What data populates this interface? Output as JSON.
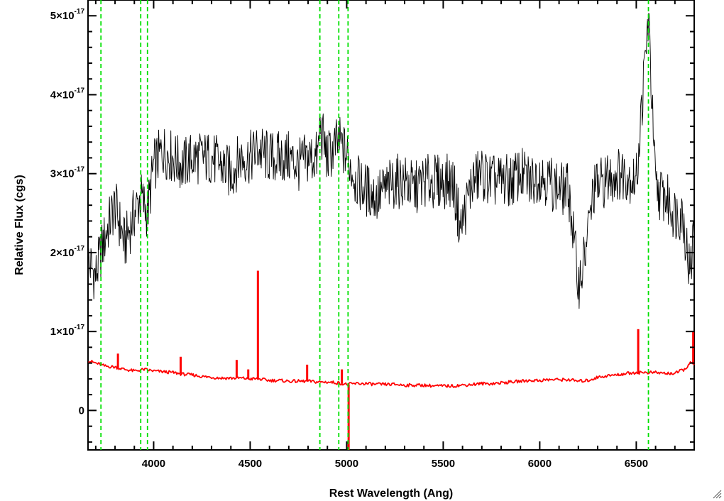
{
  "chart_data": {
    "type": "line",
    "xlabel": "Rest Wavelength (Ang)",
    "ylabel": "Relative Flux (cgs)",
    "xlim": [
      3660,
      6800
    ],
    "ylim": [
      -5e-18,
      5.2e-17
    ],
    "x_ticks": [
      {
        "value": 4000,
        "label": "4000"
      },
      {
        "value": 4500,
        "label": "4500"
      },
      {
        "value": 5000,
        "label": "5000"
      },
      {
        "value": 5500,
        "label": "5500"
      },
      {
        "value": 6000,
        "label": "6000"
      },
      {
        "value": 6500,
        "label": "6500"
      }
    ],
    "y_ticks": [
      {
        "value": 0,
        "mantissa": "0",
        "exponent": ""
      },
      {
        "value": 1e-17,
        "mantissa": "1×10",
        "exponent": "-17"
      },
      {
        "value": 2e-17,
        "mantissa": "2×10",
        "exponent": "-17"
      },
      {
        "value": 3e-17,
        "mantissa": "3×10",
        "exponent": "-17"
      },
      {
        "value": 4e-17,
        "mantissa": "4×10",
        "exponent": "-17"
      },
      {
        "value": 5e-17,
        "mantissa": "5×10",
        "exponent": "-17"
      }
    ],
    "vertical_lines": [
      3727,
      3933,
      3968,
      4861,
      4959,
      5007,
      6563
    ],
    "series": [
      {
        "color": "#000000",
        "x": [
          3660,
          3700,
          3727,
          3760,
          3800,
          3850,
          3900,
          3933,
          3968,
          4000,
          4050,
          4100,
          4150,
          4200,
          4250,
          4300,
          4350,
          4400,
          4450,
          4500,
          4540,
          4600,
          4650,
          4700,
          4750,
          4800,
          4850,
          4861,
          4900,
          4959,
          5007,
          5050,
          5100,
          5150,
          5200,
          5250,
          5300,
          5350,
          5400,
          5450,
          5500,
          5550,
          5590,
          5650,
          5700,
          5750,
          5800,
          5850,
          5900,
          5950,
          6000,
          6050,
          6100,
          6150,
          6200,
          6230,
          6280,
          6330,
          6400,
          6450,
          6500,
          6563,
          6600,
          6650,
          6700,
          6740,
          6780,
          6800
        ],
        "y": [
          1.9e-17,
          1.7e-17,
          2e-17,
          2.3e-17,
          2.6e-17,
          2.1e-17,
          2.5e-17,
          2.7e-17,
          2.5e-17,
          3.1e-17,
          3.3e-17,
          3.2e-17,
          3.1e-17,
          3.2e-17,
          3.2e-17,
          3.2e-17,
          3.1e-17,
          3e-17,
          3.2e-17,
          3.2e-17,
          3.3e-17,
          3.2e-17,
          3.2e-17,
          3.2e-17,
          3.1e-17,
          3.2e-17,
          3.2e-17,
          3.6e-17,
          3.2e-17,
          3.4e-17,
          3.2e-17,
          2.9e-17,
          2.8e-17,
          2.7e-17,
          2.8e-17,
          2.9e-17,
          2.9e-17,
          2.8e-17,
          2.9e-17,
          2.9e-17,
          2.9e-17,
          2.9e-17,
          2.3e-17,
          2.9e-17,
          3e-17,
          2.9e-17,
          2.9e-17,
          2.9e-17,
          3e-17,
          2.9e-17,
          3e-17,
          2.9e-17,
          2.8e-17,
          2.8e-17,
          1.6e-17,
          1.9e-17,
          2.8e-17,
          2.9e-17,
          3e-17,
          3e-17,
          2.9e-17,
          5e-17,
          2.8e-17,
          2.7e-17,
          2.5e-17,
          2.5e-17,
          1.7e-17,
          2.4e-17
        ]
      },
      {
        "color": "#ff0000",
        "x": [
          3660,
          3700,
          3750,
          3800,
          3850,
          3900,
          3950,
          4000,
          4050,
          4100,
          4150,
          4200,
          4250,
          4300,
          4350,
          4400,
          4450,
          4500,
          4540,
          4600,
          4650,
          4700,
          4750,
          4800,
          4850,
          4900,
          4950,
          5000,
          5050,
          5100,
          5150,
          5200,
          5250,
          5300,
          5350,
          5400,
          5450,
          5500,
          5550,
          5600,
          5650,
          5700,
          5750,
          5800,
          5850,
          5900,
          5950,
          6000,
          6050,
          6100,
          6150,
          6200,
          6250,
          6300,
          6350,
          6400,
          6450,
          6500,
          6550,
          6600,
          6650,
          6700,
          6750,
          6780,
          6800
        ],
        "y": [
          6.3e-18,
          6e-18,
          5.6e-18,
          5.5e-18,
          5.2e-18,
          5e-18,
          5.2e-18,
          5e-18,
          4.9e-18,
          4.8e-18,
          4.6e-18,
          4.5e-18,
          4.3e-18,
          4.2e-18,
          4.1e-18,
          4.1e-18,
          4.1e-18,
          4e-18,
          4e-18,
          3.8e-18,
          3.8e-18,
          3.7e-18,
          3.7e-18,
          3.7e-18,
          3.6e-18,
          3.6e-18,
          3.5e-18,
          3.3e-18,
          3.4e-18,
          3.4e-18,
          3.3e-18,
          3.3e-18,
          3.3e-18,
          3.2e-18,
          3.2e-18,
          3.2e-18,
          3.1e-18,
          3.1e-18,
          3.1e-18,
          3.2e-18,
          3.3e-18,
          3.4e-18,
          3.4e-18,
          3.5e-18,
          3.6e-18,
          3.7e-18,
          3.8e-18,
          3.8e-18,
          3.9e-18,
          3.9e-18,
          3.9e-18,
          3.7e-18,
          3.8e-18,
          4.2e-18,
          4.4e-18,
          4.5e-18,
          4.7e-18,
          4.8e-18,
          4.8e-18,
          4.8e-18,
          4.7e-18,
          4.7e-18,
          5.2e-18,
          6e-18,
          5.8e-18
        ],
        "spikes": [
          {
            "x": 3815,
            "y": 7.2e-18
          },
          {
            "x": 4140,
            "y": 6.8e-18
          },
          {
            "x": 4430,
            "y": 6.4e-18
          },
          {
            "x": 4490,
            "y": 5.2e-18
          },
          {
            "x": 4540,
            "y": 1.77e-17
          },
          {
            "x": 4795,
            "y": 5.8e-18
          },
          {
            "x": 4975,
            "y": 5.2e-18
          },
          {
            "x": 5010,
            "y": -5e-18
          },
          {
            "x": 6510,
            "y": 1.03e-17
          },
          {
            "x": 6795,
            "y": 1e-17
          }
        ]
      }
    ]
  }
}
